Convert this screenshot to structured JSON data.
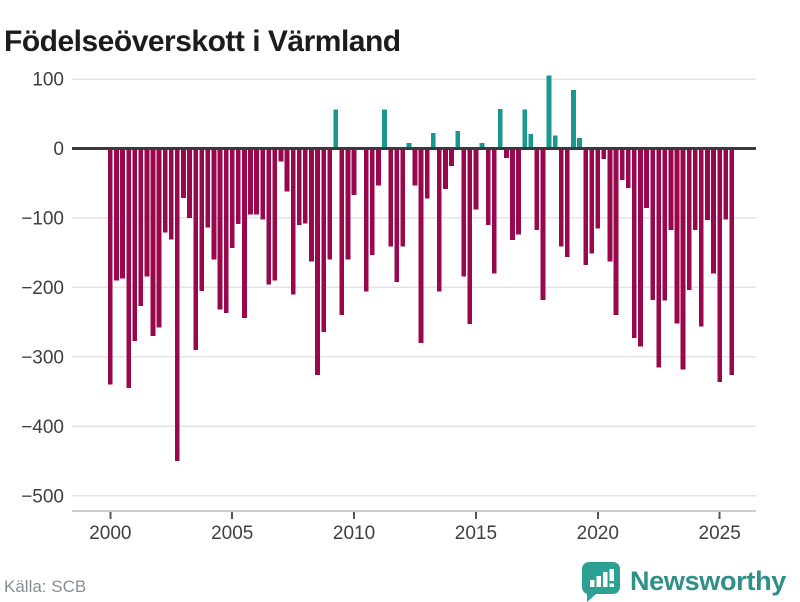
{
  "title": "Födelseöverskott i Värmland",
  "source": "Källa: SCB",
  "branding": {
    "name": "Newsworthy",
    "icon": "bar-chart-speech-bubble"
  },
  "colors": {
    "negative": "#99074d",
    "positive": "#17998f",
    "zero_line": "#3a3a3a",
    "gridline": "#e4e4e4",
    "axis_line": "#cfcfcf",
    "tick": "#555555",
    "axis_text": "#3f3f3f",
    "title_text": "#1c1c1c",
    "source_text": "#878e98",
    "brand_teal": "#2f9087"
  },
  "chart_data": {
    "type": "bar",
    "title": "Födelseöverskott i Värmland",
    "xlabel": "",
    "ylabel": "",
    "ylim": [
      -500,
      100
    ],
    "grid": "horizontal",
    "legend": "none",
    "y_ticks": [
      100,
      0,
      -100,
      -200,
      -300,
      -400,
      -500
    ],
    "x_ticks": [
      {
        "label": "2000",
        "quarter_index": 0
      },
      {
        "label": "2005",
        "quarter_index": 20
      },
      {
        "label": "2010",
        "quarter_index": 40
      },
      {
        "label": "2015",
        "quarter_index": 60
      },
      {
        "label": "2020",
        "quarter_index": 80
      },
      {
        "label": "2025",
        "quarter_index": 100
      }
    ],
    "x": [
      "2000Q1",
      "2000Q2",
      "2000Q3",
      "2000Q4",
      "2001Q1",
      "2001Q2",
      "2001Q3",
      "2001Q4",
      "2002Q1",
      "2002Q2",
      "2002Q3",
      "2002Q4",
      "2003Q1",
      "2003Q2",
      "2003Q3",
      "2003Q4",
      "2004Q1",
      "2004Q2",
      "2004Q3",
      "2004Q4",
      "2005Q1",
      "2005Q2",
      "2005Q3",
      "2005Q4",
      "2006Q1",
      "2006Q2",
      "2006Q3",
      "2006Q4",
      "2007Q1",
      "2007Q2",
      "2007Q3",
      "2007Q4",
      "2008Q1",
      "2008Q2",
      "2008Q3",
      "2008Q4",
      "2009Q1",
      "2009Q2",
      "2009Q3",
      "2009Q4",
      "2010Q1",
      "2010Q2",
      "2010Q3",
      "2010Q4",
      "2011Q1",
      "2011Q2",
      "2011Q3",
      "2011Q4",
      "2012Q1",
      "2012Q2",
      "2012Q3",
      "2012Q4",
      "2013Q1",
      "2013Q2",
      "2013Q3",
      "2013Q4",
      "2014Q1",
      "2014Q2",
      "2014Q3",
      "2014Q4",
      "2015Q1",
      "2015Q2",
      "2015Q3",
      "2015Q4",
      "2016Q1",
      "2016Q2",
      "2016Q3",
      "2016Q4",
      "2017Q1",
      "2017Q2",
      "2017Q3",
      "2017Q4",
      "2018Q1",
      "2018Q2",
      "2018Q3",
      "2018Q4",
      "2019Q1",
      "2019Q2",
      "2019Q3",
      "2019Q4",
      "2020Q1",
      "2020Q2",
      "2020Q3",
      "2020Q4",
      "2021Q1",
      "2021Q2",
      "2021Q3",
      "2021Q4",
      "2022Q1",
      "2022Q2",
      "2022Q3",
      "2022Q4",
      "2023Q1",
      "2023Q2",
      "2023Q3",
      "2023Q4",
      "2024Q1",
      "2024Q2",
      "2024Q3",
      "2024Q4",
      "2025Q1",
      "2025Q2",
      "2025Q3"
    ],
    "values": [
      -340,
      -190,
      -187,
      -345,
      -277,
      -227,
      -184,
      -270,
      -258,
      -121,
      -131,
      -450,
      -71,
      -100,
      -290,
      -205,
      -114,
      -160,
      -232,
      -237,
      -143,
      -109,
      -244,
      -95,
      -95,
      -102,
      -196,
      -190,
      -19,
      -62,
      -210,
      -110,
      -108,
      -163,
      -326,
      -264,
      -160,
      56,
      -240,
      -160,
      -67,
      -2,
      -206,
      -153,
      -53,
      56,
      -141,
      -192,
      -141,
      8,
      -53,
      -280,
      -72,
      22,
      -206,
      -58,
      -25,
      25,
      -184,
      -253,
      -88,
      8,
      -110,
      -180,
      57,
      -14,
      -132,
      -124,
      56,
      21,
      -117,
      -218,
      105,
      19,
      -141,
      -156,
      84,
      15,
      -168,
      -151,
      -115,
      -15,
      -163,
      -240,
      -45,
      -57,
      -273,
      -285,
      -86,
      -218,
      -315,
      -219,
      -117,
      -252,
      -318,
      -204,
      -117,
      -256,
      -103,
      -180,
      -336,
      -102,
      -326
    ]
  }
}
